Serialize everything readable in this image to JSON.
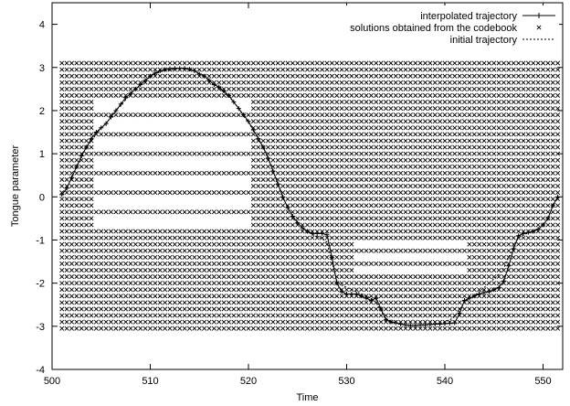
{
  "chart_data": {
    "type": "scatter",
    "title": "",
    "xlabel": "Time",
    "ylabel": "Tongue parameter",
    "xlim": [
      500,
      552
    ],
    "ylim": [
      -4,
      4.5
    ],
    "xticks": [
      500,
      510,
      520,
      530,
      540,
      550
    ],
    "yticks": [
      -4,
      -3,
      -2,
      -1,
      0,
      1,
      2,
      3,
      4
    ],
    "grid": false,
    "legend_position": "top-right",
    "legend": [
      {
        "label": "interpolated trajectory",
        "style": "solid line with + markers"
      },
      {
        "label": "solutions obtained from the codebook",
        "style": "x markers"
      },
      {
        "label": "initial trajectory",
        "style": "dotted line"
      }
    ],
    "series": [
      {
        "name": "interpolated trajectory",
        "x": [
          501,
          501.5,
          502,
          502.5,
          503,
          503.5,
          504,
          504.5,
          505,
          505.5,
          506,
          506.5,
          507,
          507.5,
          508,
          508.5,
          509,
          509.5,
          510,
          510.5,
          511,
          511.5,
          512,
          512.5,
          513,
          513.5,
          514,
          514.5,
          515,
          515.5,
          516,
          516.5,
          517,
          517.5,
          518,
          518.5,
          519,
          519.5,
          520,
          520.5,
          521,
          521.5,
          522,
          522.5,
          523,
          523.5,
          524,
          524.5,
          525,
          525.5,
          526,
          526.5,
          527,
          527.5,
          528,
          528.5,
          529,
          529.5,
          530,
          530.5,
          531,
          531.5,
          532,
          532.5,
          533,
          533.5,
          534,
          534.5,
          535,
          535.5,
          536,
          536.5,
          537,
          537.5,
          538,
          538.5,
          539,
          539.5,
          540,
          540.5,
          541,
          541.5,
          542,
          542.5,
          543,
          543.5,
          544,
          544.5,
          545,
          545.5,
          546,
          546.5,
          547,
          547.5,
          548,
          548.5,
          549,
          549.5,
          550,
          550.5,
          551,
          551.5
        ],
        "y": [
          0.05,
          0.2,
          0.45,
          0.7,
          0.95,
          1.15,
          1.35,
          1.5,
          1.6,
          1.7,
          1.85,
          2.0,
          2.15,
          2.3,
          2.4,
          2.5,
          2.6,
          2.7,
          2.8,
          2.87,
          2.92,
          2.95,
          2.97,
          2.98,
          2.98,
          2.98,
          2.96,
          2.92,
          2.85,
          2.8,
          2.7,
          2.6,
          2.55,
          2.45,
          2.35,
          2.2,
          2.05,
          1.9,
          1.75,
          1.55,
          1.35,
          1.15,
          0.9,
          0.6,
          0.3,
          0.0,
          -0.25,
          -0.45,
          -0.6,
          -0.72,
          -0.8,
          -0.85,
          -0.85,
          -0.85,
          -0.88,
          -1.4,
          -2.0,
          -2.2,
          -2.25,
          -2.25,
          -2.25,
          -2.3,
          -2.35,
          -2.4,
          -2.35,
          -2.6,
          -2.85,
          -2.9,
          -2.92,
          -2.95,
          -2.97,
          -2.98,
          -2.98,
          -2.97,
          -2.97,
          -2.96,
          -2.95,
          -2.95,
          -2.94,
          -2.93,
          -2.92,
          -2.7,
          -2.4,
          -2.35,
          -2.3,
          -2.25,
          -2.22,
          -2.2,
          -2.15,
          -2.1,
          -1.95,
          -1.6,
          -1.2,
          -0.9,
          -0.85,
          -0.82,
          -0.8,
          -0.75,
          -0.65,
          -0.5,
          -0.2,
          0.0
        ]
      },
      {
        "name": "initial trajectory",
        "x": [
          501,
          501.5,
          502,
          502.5,
          503,
          503.5,
          504,
          504.5,
          505,
          505.5,
          506,
          506.5,
          507,
          507.5,
          508,
          508.5,
          509,
          509.5,
          510,
          510.5,
          511,
          511.5,
          512,
          512.5,
          513,
          513.5,
          514,
          514.5,
          515,
          515.5,
          516,
          516.5,
          517,
          517.5,
          518,
          518.5,
          519,
          519.5,
          520,
          520.5,
          521,
          521.5,
          522,
          522.5,
          523,
          523.5,
          524,
          524.5,
          525,
          525.5,
          526,
          526.5,
          527,
          527.5,
          528,
          528.5,
          529,
          529.5,
          530,
          530.5,
          531,
          531.5,
          532,
          532.5,
          533,
          533.5,
          534,
          534.5,
          535,
          535.5,
          536,
          536.5,
          537,
          537.5,
          538,
          538.5,
          539,
          539.5,
          540,
          540.5,
          541,
          541.5,
          542,
          542.5,
          543,
          543.5,
          544,
          544.5,
          545,
          545.5,
          546,
          546.5,
          547,
          547.5,
          548,
          548.5,
          549,
          549.5,
          550,
          550.5,
          551,
          551.5
        ],
        "y": [
          0.05,
          0.2,
          0.45,
          0.7,
          0.95,
          1.15,
          1.3,
          1.45,
          1.6,
          1.7,
          1.85,
          2.0,
          2.12,
          2.25,
          2.4,
          2.5,
          2.6,
          2.7,
          2.78,
          2.85,
          2.9,
          2.93,
          2.95,
          2.96,
          2.97,
          2.97,
          2.95,
          2.92,
          2.85,
          2.8,
          2.7,
          2.6,
          2.52,
          2.42,
          2.32,
          2.2,
          2.05,
          1.88,
          1.72,
          1.55,
          1.35,
          1.15,
          0.9,
          0.6,
          0.3,
          0.0,
          -0.25,
          -0.45,
          -0.6,
          -0.72,
          -0.8,
          -0.87,
          -0.92,
          -0.97,
          -1.05,
          -1.5,
          -1.95,
          -2.05,
          -2.1,
          -2.15,
          -2.2,
          -2.25,
          -2.3,
          -2.35,
          -2.45,
          -2.65,
          -2.82,
          -2.88,
          -2.92,
          -2.95,
          -2.97,
          -2.98,
          -2.98,
          -2.97,
          -2.97,
          -2.96,
          -2.95,
          -2.93,
          -2.9,
          -2.85,
          -2.78,
          -2.6,
          -2.45,
          -2.35,
          -2.28,
          -2.2,
          -2.1,
          -2.0,
          -1.9,
          -1.8,
          -1.65,
          -1.4,
          -1.15,
          -0.95,
          -0.88,
          -0.84,
          -0.8,
          -0.75,
          -0.65,
          -0.5,
          -0.2,
          0.0
        ]
      },
      {
        "name": "solutions obtained from the codebook",
        "x_start": 501,
        "x_step": 0.5,
        "y_levels": [
          -3.05,
          -2.9,
          -2.75,
          -2.6,
          -2.45,
          -2.3,
          -2.15,
          -2.0,
          -1.85,
          -1.7,
          -1.55,
          -1.4,
          -1.25,
          -1.1,
          -0.95,
          -0.8,
          -0.65,
          -0.5,
          -0.35,
          -0.2,
          -0.05,
          0.1,
          0.25,
          0.4,
          0.55,
          0.7,
          0.85,
          1.0,
          1.15,
          1.3,
          1.45,
          1.6,
          1.75,
          1.9,
          2.05,
          2.2,
          2.35,
          2.5,
          2.65,
          2.8,
          2.95,
          3.1
        ],
        "column_sparse": [
          0,
          0,
          0,
          0,
          0,
          0,
          0,
          1,
          1,
          1,
          1,
          1,
          1,
          1,
          1,
          1,
          1,
          1,
          1,
          1,
          1,
          1,
          1,
          1,
          1,
          1,
          1,
          1,
          1,
          1,
          1,
          1,
          1,
          1,
          1,
          1,
          1,
          1,
          1,
          0,
          0,
          0,
          0,
          0,
          0,
          0,
          0,
          0,
          0,
          0,
          0,
          0,
          0,
          0,
          0,
          0,
          0,
          0,
          0,
          0,
          0,
          0,
          0,
          0,
          0,
          0,
          0,
          0,
          0,
          0,
          0,
          0,
          0,
          0,
          0,
          0,
          0,
          0,
          0,
          0,
          0,
          0,
          0,
          0,
          0,
          0,
          0,
          0,
          0,
          0,
          0,
          0,
          0,
          0,
          0,
          0,
          0,
          0,
          0,
          0,
          0,
          0
        ]
      }
    ]
  }
}
